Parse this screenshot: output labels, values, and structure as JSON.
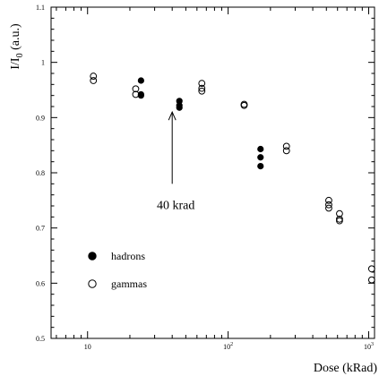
{
  "chart_data": {
    "type": "scatter",
    "xlabel": "Dose (kRad)",
    "ylabel": "I/I0 (a.u.)",
    "x_scale": "log",
    "xlim": [
      5.5,
      1100
    ],
    "ylim": [
      0.5,
      1.1
    ],
    "x_ticks": [
      {
        "value": 10,
        "label": "10"
      },
      {
        "value": 100,
        "label": "10",
        "exp": "2"
      },
      {
        "value": 1000,
        "label": "10",
        "exp": "3"
      }
    ],
    "y_ticks": [
      "0.5",
      "0.6",
      "0.7",
      "0.8",
      "0.9",
      "1",
      "1.1"
    ],
    "grid": false,
    "legend_position": "bottom-left",
    "series": [
      {
        "name": "hadrons",
        "marker": "filled-circle",
        "color": "#000000",
        "points": [
          [
            24,
            0.967
          ],
          [
            24,
            0.942
          ],
          [
            24,
            0.94
          ],
          [
            45,
            0.93
          ],
          [
            45,
            0.922
          ],
          [
            45,
            0.918
          ],
          [
            170,
            0.843
          ],
          [
            170,
            0.828
          ],
          [
            170,
            0.812
          ]
        ]
      },
      {
        "name": "gammas",
        "marker": "open-circle",
        "color": "#000000",
        "points": [
          [
            11,
            0.975
          ],
          [
            11,
            0.967
          ],
          [
            22,
            0.952
          ],
          [
            22,
            0.942
          ],
          [
            65,
            0.962
          ],
          [
            65,
            0.953
          ],
          [
            65,
            0.948
          ],
          [
            130,
            0.924
          ],
          [
            130,
            0.922
          ],
          [
            260,
            0.848
          ],
          [
            260,
            0.84
          ],
          [
            520,
            0.75
          ],
          [
            520,
            0.742
          ],
          [
            520,
            0.736
          ],
          [
            620,
            0.726
          ],
          [
            620,
            0.716
          ],
          [
            620,
            0.713
          ],
          [
            1050,
            0.626
          ],
          [
            1050,
            0.606
          ]
        ]
      }
    ],
    "annotations": [
      {
        "text": "40 krad",
        "arrow_to": [
          40,
          0.91
        ],
        "arrow_from": [
          40,
          0.78
        ]
      }
    ]
  }
}
